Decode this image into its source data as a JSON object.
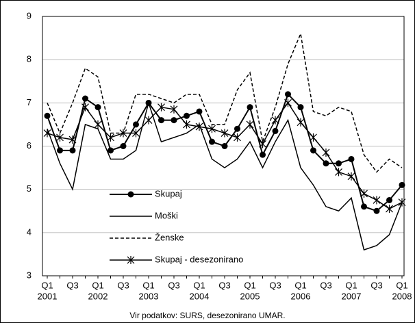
{
  "chart_data": {
    "type": "line",
    "categories": [
      "Q1",
      null,
      "Q3",
      null,
      "Q1",
      null,
      "Q3",
      null,
      "Q1",
      null,
      "Q3",
      null,
      "Q1",
      null,
      "Q3",
      null,
      "Q1",
      null,
      "Q3",
      null,
      "Q1",
      null,
      "Q3",
      null,
      "Q1",
      null,
      "Q3",
      null,
      "Q1"
    ],
    "years": [
      "2001",
      null,
      null,
      null,
      "2002",
      null,
      null,
      null,
      "2003",
      null,
      null,
      null,
      "2004",
      null,
      null,
      null,
      "2005",
      null,
      null,
      null,
      "2006",
      null,
      null,
      null,
      "2007",
      null,
      null,
      null,
      "2008"
    ],
    "series": [
      {
        "name": "Skupaj",
        "color": "#000000",
        "style": "dots",
        "values": [
          6.7,
          5.9,
          5.9,
          7.1,
          6.9,
          5.9,
          6.0,
          6.5,
          7.0,
          6.6,
          6.6,
          6.7,
          6.8,
          6.1,
          6.0,
          6.4,
          6.9,
          5.8,
          6.35,
          7.2,
          6.9,
          5.9,
          5.6,
          5.6,
          5.7,
          4.6,
          4.5,
          4.75,
          5.1
        ]
      },
      {
        "name": "Moški",
        "color": "#000000",
        "style": "solid",
        "values": [
          6.4,
          5.6,
          5.0,
          6.5,
          6.4,
          5.7,
          5.7,
          5.9,
          7.0,
          6.1,
          6.2,
          6.3,
          6.5,
          5.7,
          5.5,
          5.7,
          6.1,
          5.5,
          6.1,
          6.6,
          5.5,
          5.1,
          4.6,
          4.5,
          4.8,
          3.6,
          3.7,
          3.95,
          4.7
        ]
      },
      {
        "name": "Ženske",
        "color": "#000000",
        "style": "dashed",
        "values": [
          7.0,
          6.3,
          7.0,
          7.8,
          7.6,
          6.3,
          6.3,
          7.2,
          7.2,
          7.1,
          7.0,
          7.2,
          7.2,
          6.5,
          6.5,
          7.3,
          7.7,
          6.1,
          6.9,
          7.9,
          8.6,
          6.8,
          6.7,
          6.9,
          6.8,
          5.8,
          5.4,
          5.7,
          5.5
        ]
      },
      {
        "name": "Skupaj - desezonirano",
        "color": "#000000",
        "style": "stars",
        "values": [
          6.3,
          6.2,
          6.15,
          6.9,
          6.5,
          6.2,
          6.3,
          6.3,
          6.6,
          6.9,
          6.85,
          6.5,
          6.45,
          6.4,
          6.3,
          6.2,
          6.5,
          6.05,
          6.6,
          7.0,
          6.55,
          6.2,
          5.85,
          5.4,
          5.3,
          4.9,
          4.75,
          4.55,
          4.7
        ]
      }
    ],
    "ylim": [
      3,
      9
    ],
    "yticks": [
      3,
      4,
      5,
      6,
      7,
      8,
      9
    ],
    "grid": true,
    "legend": "lower-left",
    "source": "Vir podatkov: SURS, desezonirano UMAR."
  }
}
